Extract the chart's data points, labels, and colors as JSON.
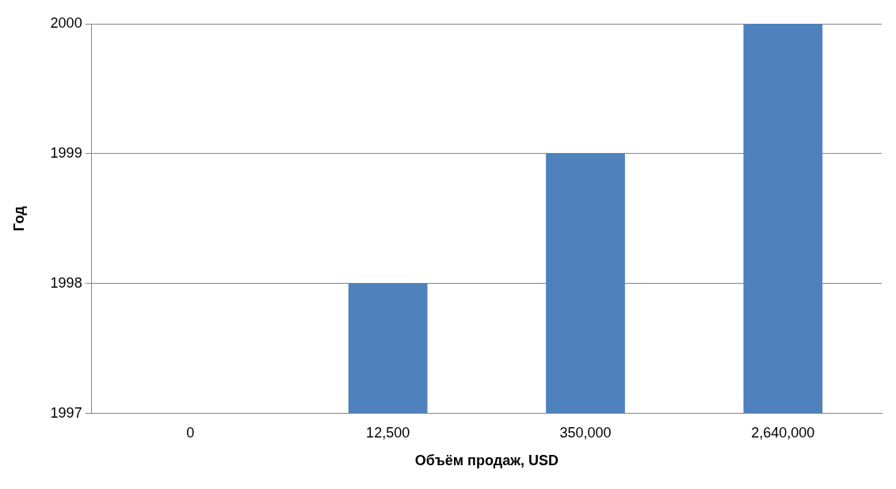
{
  "chart_data": {
    "type": "bar",
    "xlabel": "Объём продаж, USD",
    "ylabel": "Год",
    "categories": [
      "0",
      "12,500",
      "350,000",
      "2,640,000"
    ],
    "values": [
      1997,
      1998,
      1999,
      2000
    ],
    "color": "#4f81bd",
    "ylim": [
      1997,
      2000
    ],
    "yticks": [
      1997,
      1998,
      1999,
      2000
    ],
    "grid": "y"
  }
}
